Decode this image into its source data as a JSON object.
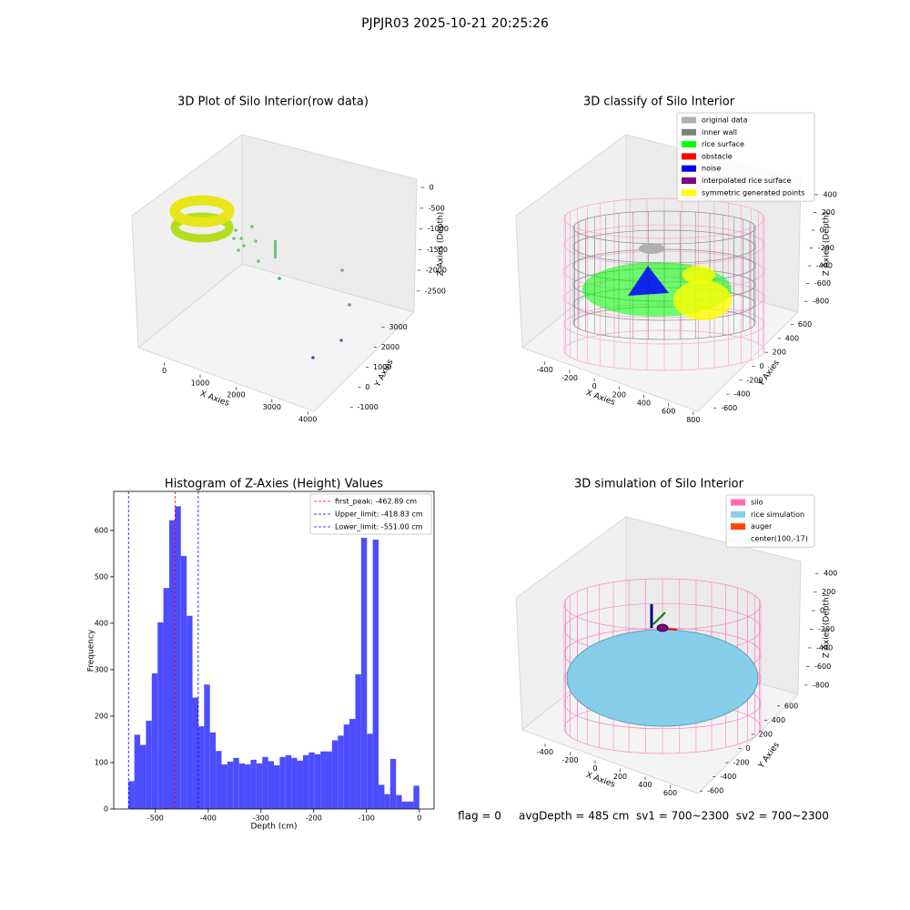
{
  "title": "PJPJR03 2025-10-21 20:25:26",
  "footer": "flag = 0     avgDepth = 485 cm  sv1 = 700~2300  sv2 = 700~2300",
  "chart_data": [
    {
      "type": "scatter3d",
      "title": "3D Plot of Silo Interior(row data)",
      "xlabel": "X Axies",
      "ylabel": "Y Axies",
      "zlabel": "Z Axies (Depth)",
      "xlim": [
        -700,
        4300
      ],
      "xticks": [
        0,
        1000,
        2000,
        3000,
        4000
      ],
      "ylim": [
        -1300,
        3300
      ],
      "yticks": [
        -1000,
        0,
        1000,
        2000,
        3000
      ],
      "zlim": [
        -2900,
        200
      ],
      "zticks": [
        -2500,
        -2000,
        -1500,
        -1000,
        -500,
        0
      ]
    },
    {
      "type": "scatter3d",
      "title": "3D classify of Silo Interior",
      "xlabel": "X Axies",
      "ylabel": "Y Axies",
      "zlabel": "Z Axies (Depth)",
      "xlim": [
        -560,
        860
      ],
      "xticks": [
        -400,
        -200,
        0,
        200,
        400,
        600,
        800
      ],
      "ylim": [
        -700,
        700
      ],
      "yticks": [
        -600,
        -400,
        -200,
        0,
        200,
        400,
        600
      ],
      "zlim": [
        -900,
        450
      ],
      "zticks": [
        -800,
        -600,
        -400,
        -200,
        0,
        200,
        400
      ],
      "legend_position": "upper right",
      "legend": [
        {
          "name": "original data",
          "color": "#b0b0b0"
        },
        {
          "name": "inner wall",
          "color": "#808080"
        },
        {
          "name": "rice surface",
          "color": "#00ff00"
        },
        {
          "name": "obstacle",
          "color": "#ff0000"
        },
        {
          "name": "noise",
          "color": "#0000ff"
        },
        {
          "name": "interpolated rice surface",
          "color": "#800080"
        },
        {
          "name": "symmetric generated points",
          "color": "#ffff00"
        }
      ]
    },
    {
      "type": "histogram",
      "title": "Histogram of Z-Axies (Height) Values",
      "xlabel": "Depth (cm)",
      "ylabel": "Frequency",
      "color": "#4d4dff",
      "bins": [
        -551,
        -539.98,
        -528.96,
        -517.94,
        -506.92,
        -495.9,
        -484.88,
        -473.86,
        -462.84,
        -451.82,
        -440.8,
        -429.78,
        -418.76,
        -407.74,
        -396.72,
        -385.7,
        -374.68,
        -363.66,
        -352.64,
        -341.62,
        -330.6,
        -319.58,
        -308.56,
        -297.54,
        -286.52,
        -275.5,
        -264.48,
        -253.46,
        -242.44,
        -231.42,
        -220.4,
        -209.38,
        -198.36,
        -187.34,
        -176.32,
        -165.3,
        -154.28,
        -143.26,
        -132.24,
        -121.22,
        -110.2,
        -99.18,
        -88.16,
        -77.14,
        -66.12,
        -55.1,
        -44.08,
        -33.06,
        -22.04,
        -11.02,
        0
      ],
      "counts": [
        60,
        160,
        138,
        190,
        292,
        402,
        476,
        622,
        652,
        545,
        416,
        240,
        178,
        268,
        165,
        125,
        96,
        102,
        110,
        98,
        96,
        106,
        98,
        112,
        103,
        94,
        112,
        116,
        110,
        104,
        116,
        122,
        118,
        124,
        124,
        148,
        158,
        182,
        194,
        290,
        584,
        162,
        580,
        52,
        32,
        108,
        30,
        16,
        16,
        50
      ],
      "xlim": [
        -579,
        28
      ],
      "xticks": [
        -500,
        -400,
        -300,
        -200,
        -100,
        0
      ],
      "ylim": [
        0,
        684
      ],
      "yticks": [
        0,
        100,
        200,
        300,
        400,
        500,
        600
      ],
      "legend_position": "upper right",
      "vlines": [
        {
          "name": "first_peak: -462.89 cm",
          "value": -462.89,
          "color": "#ff0000"
        },
        {
          "name": "Upper_limit: -418.83 cm",
          "value": -418.83,
          "color": "#0000ff"
        },
        {
          "name": "Lower_limit: -551.00 cm",
          "value": -551.0,
          "color": "#0000ff"
        }
      ]
    },
    {
      "type": "surface3d",
      "title": "3D simulation of Silo Interior",
      "xlabel": "X Axies",
      "ylabel": "Y Axies",
      "zlabel": "Z Axies (Depth)",
      "xlim": [
        -560,
        720
      ],
      "xticks": [
        -400,
        -200,
        0,
        200,
        400,
        600
      ],
      "ylim": [
        -700,
        700
      ],
      "yticks": [
        -600,
        -400,
        -200,
        0,
        200,
        400,
        600
      ],
      "zlim": [
        -900,
        500
      ],
      "zticks": [
        -800,
        -600,
        -400,
        -200,
        0,
        200,
        400
      ],
      "legend_position": "upper right",
      "legend": [
        {
          "name": "silo",
          "color": "#ff69b4"
        },
        {
          "name": "rice simulation",
          "color": "#87ceeb"
        },
        {
          "name": "auger",
          "color": "#ff4500"
        },
        {
          "name": "center(100,-17)"
        }
      ]
    }
  ]
}
